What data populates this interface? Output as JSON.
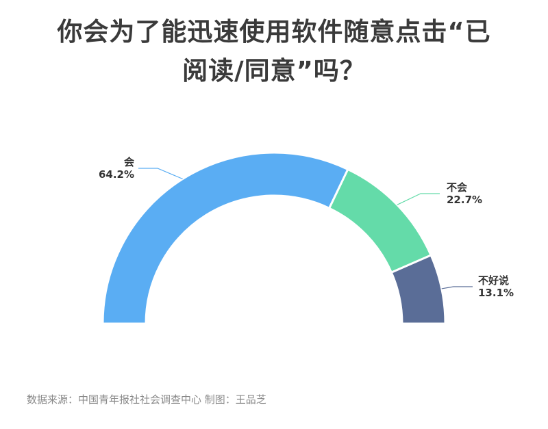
{
  "title": {
    "line1": "你会为了能迅速使用软件随意点击“已",
    "line2": "阅读/同意”吗？"
  },
  "chart_data": {
    "type": "pie",
    "style": "semicircle-donut",
    "slices": [
      {
        "label": "会",
        "value": 64.2,
        "display": "64.2%",
        "color": "#5aadf3"
      },
      {
        "label": "不会",
        "value": 22.7,
        "display": "22.7%",
        "color": "#64dba9"
      },
      {
        "label": "不好说",
        "value": 13.1,
        "display": "13.1%",
        "color": "#5a6d97"
      }
    ]
  },
  "footer": {
    "source": "数据来源：中国青年报社社会调查中心 制图：王品芝"
  }
}
